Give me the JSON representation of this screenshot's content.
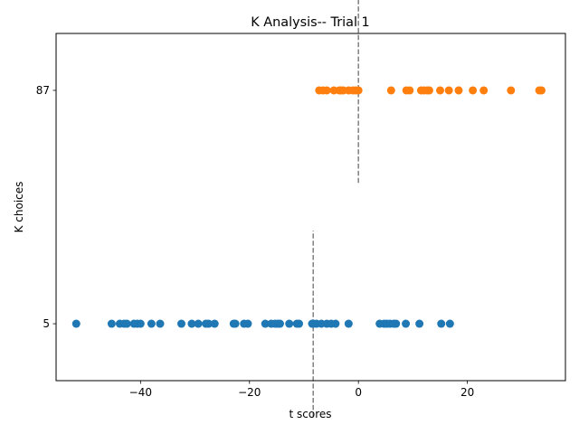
{
  "chart_data": {
    "type": "scatter",
    "title": "K Analysis-- Trial 1",
    "xlabel": "t scores",
    "ylabel": "K choices",
    "xlim": [
      -55.5,
      38.0
    ],
    "ylim": [
      -15.0,
      107.0
    ],
    "x_ticks": [
      -40,
      -20,
      0,
      20
    ],
    "x_tick_labels": [
      "−40",
      "−20",
      "0",
      "20"
    ],
    "y_ticks": [
      5,
      87
    ],
    "y_tick_labels": [
      "5",
      "87"
    ],
    "grid": false,
    "legend": "none",
    "series": [
      {
        "color": "#1f77b4",
        "y": 5,
        "x": [
          -51.8,
          -45.3,
          -43.8,
          -43.0,
          -42.5,
          -41.2,
          -40.6,
          -40.0,
          -38.0,
          -36.4,
          -32.5,
          -30.6,
          -29.4,
          -28.0,
          -27.5,
          -26.4,
          -22.9,
          -22.6,
          -21.0,
          -20.3,
          -17.1,
          -16.0,
          -15.3,
          -14.8,
          -14.4,
          -12.7,
          -11.3,
          -10.9,
          -8.5,
          -8.3,
          -7.7,
          -6.8,
          -5.8,
          -5.0,
          -4.2,
          -1.8,
          3.9,
          4.7,
          5.2,
          5.8,
          6.5,
          6.9,
          8.7,
          11.2,
          15.2,
          16.8
        ]
      },
      {
        "color": "#ff7f0e",
        "y": 87,
        "x": [
          -7.2,
          -6.5,
          -5.8,
          -4.5,
          -3.5,
          -3.2,
          -2.8,
          -1.8,
          -1.0,
          -0.5,
          0.0,
          6.0,
          8.8,
          9.4,
          11.5,
          12.0,
          12.6,
          13.0,
          15.0,
          16.6,
          18.4,
          21.0,
          23.0,
          28.0,
          33.2,
          33.6
        ]
      }
    ],
    "reference_lines": [
      {
        "x": -8.3,
        "y_range": [
          -27.8,
          37.7
        ]
      },
      {
        "x": 0.0,
        "y_range": [
          54.5,
          119.8
        ]
      }
    ]
  }
}
